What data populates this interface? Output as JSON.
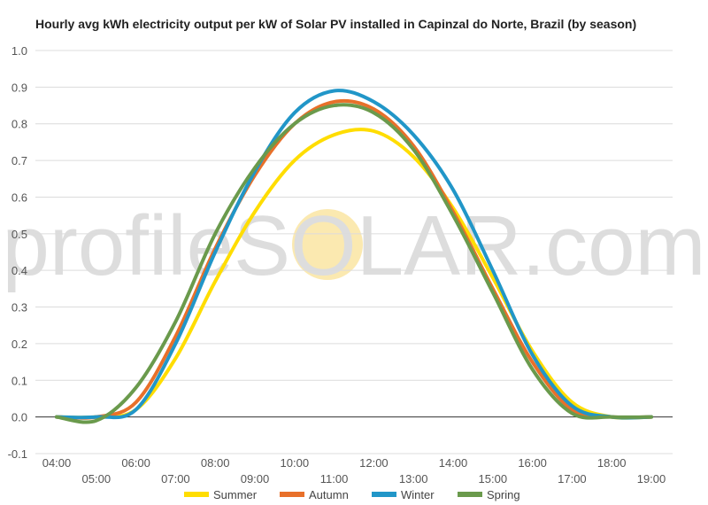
{
  "chart_data": {
    "type": "line",
    "title": "Hourly avg kWh electricity output per kW of Solar PV installed in Capinzal do Norte, Brazil (by season)",
    "xlabel": "",
    "ylabel": "",
    "ylim": [
      -0.1,
      1.0
    ],
    "yticks": [
      "-0.1",
      "0.0",
      "0.1",
      "0.2",
      "0.3",
      "0.4",
      "0.5",
      "0.6",
      "0.7",
      "0.8",
      "0.9",
      "1.0"
    ],
    "categories": [
      "04:00",
      "05:00",
      "06:00",
      "07:00",
      "08:00",
      "09:00",
      "10:00",
      "11:00",
      "12:00",
      "13:00",
      "14:00",
      "15:00",
      "16:00",
      "17:00",
      "18:00",
      "19:00"
    ],
    "grid": true,
    "legend_position": "bottom",
    "watermark": "profileSOLAR.com",
    "series": [
      {
        "name": "Summer",
        "color": "#FFDD00",
        "values": [
          0.0,
          0.0,
          0.02,
          0.16,
          0.37,
          0.56,
          0.7,
          0.77,
          0.78,
          0.71,
          0.57,
          0.38,
          0.18,
          0.04,
          0.0,
          0.0
        ]
      },
      {
        "name": "Autumn",
        "color": "#E8702A",
        "values": [
          0.0,
          0.0,
          0.04,
          0.22,
          0.46,
          0.66,
          0.8,
          0.86,
          0.84,
          0.74,
          0.56,
          0.35,
          0.15,
          0.02,
          0.0,
          0.0
        ]
      },
      {
        "name": "Winter",
        "color": "#2196C8",
        "values": [
          0.0,
          0.0,
          0.02,
          0.2,
          0.45,
          0.67,
          0.83,
          0.89,
          0.86,
          0.77,
          0.62,
          0.4,
          0.17,
          0.03,
          0.0,
          0.0
        ]
      },
      {
        "name": "Spring",
        "color": "#6A9A4C",
        "values": [
          0.0,
          -0.01,
          0.08,
          0.26,
          0.5,
          0.68,
          0.8,
          0.85,
          0.83,
          0.73,
          0.55,
          0.34,
          0.13,
          0.01,
          0.0,
          0.0
        ]
      }
    ]
  }
}
